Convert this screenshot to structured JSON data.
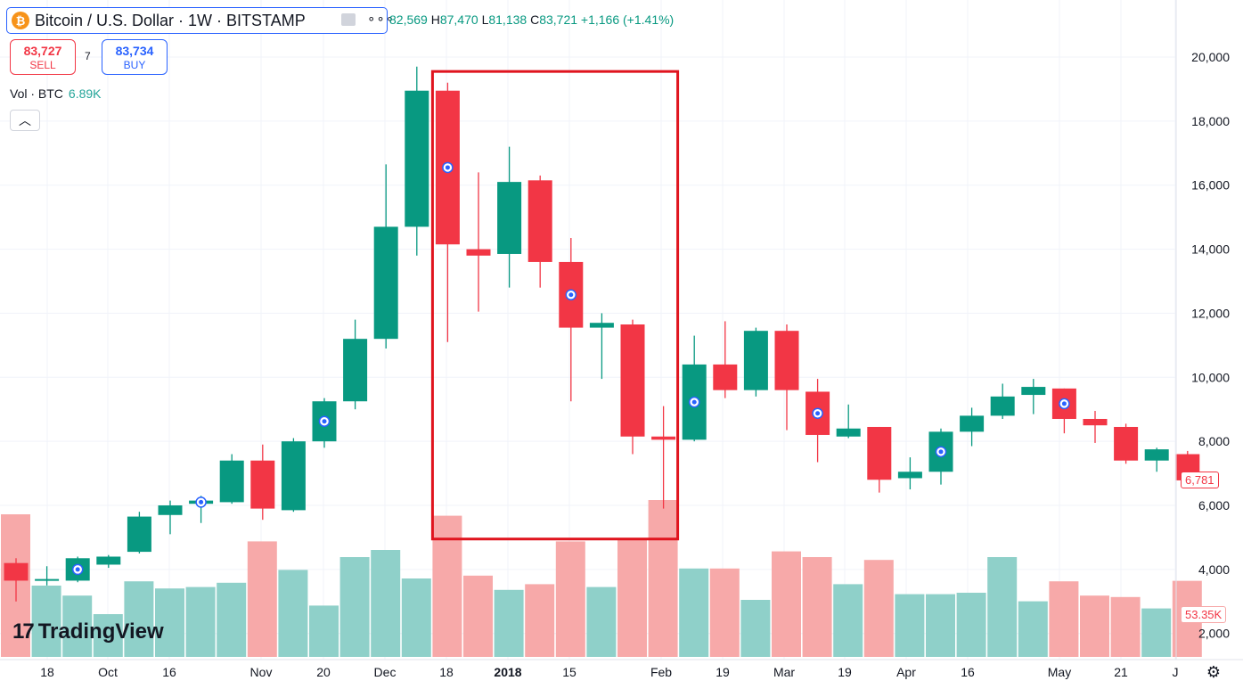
{
  "header": {
    "symbol_title": "Bitcoin / U.S. Dollar · 1W · BITSTAMP",
    "coin_icon": "bitcoin-icon",
    "ohlc": {
      "open_label": "O",
      "open": "82,569",
      "high_label": "H",
      "high": "87,470",
      "low_label": "L",
      "low": "81,138",
      "close_label": "C",
      "close": "83,721",
      "change": "+1,166 (+1.41%)"
    }
  },
  "trade": {
    "sell_price": "83,727",
    "sell_label": "SELL",
    "buy_price": "83,734",
    "buy_label": "BUY",
    "spread": "7"
  },
  "volume_legend": {
    "label": "Vol · BTC",
    "value": "6.89K"
  },
  "logo": {
    "mark": "17",
    "text": "TradingView"
  },
  "price_tags": {
    "last_price": "6,781",
    "last_volume": "53.35K"
  },
  "colors": {
    "up": "#089981",
    "down": "#f23645",
    "vol_up": "#8fd0c9",
    "vol_down": "#f7a9a9",
    "highlight_box": "#e0141e",
    "accent": "#2962ff"
  },
  "chart_data": {
    "type": "candlestick",
    "title": "Bitcoin / U.S. Dollar · 1W · BITSTAMP",
    "y_axis": {
      "ticks": [
        "20,000",
        "18,000",
        "16,000",
        "14,000",
        "12,000",
        "10,000",
        "8,000",
        "6,000",
        "4,000",
        "2,000"
      ],
      "ylim": [
        1200,
        21000
      ]
    },
    "x_axis": {
      "ticks": [
        "18",
        "Oct",
        "16",
        "Nov",
        "20",
        "Dec",
        "18",
        "2018",
        "15",
        "Feb",
        "19",
        "Mar",
        "19",
        "Apr",
        "16",
        "May",
        "21",
        "J"
      ]
    },
    "candles": [
      {
        "o": 4200,
        "h": 4350,
        "l": 3000,
        "c": 3650,
        "vol_k": 100
      },
      {
        "o": 3650,
        "h": 4100,
        "l": 3500,
        "c": 3700,
        "vol_k": 50
      },
      {
        "o": 3650,
        "h": 4400,
        "l": 3600,
        "c": 4350,
        "vol_k": 43
      },
      {
        "o": 4150,
        "h": 4450,
        "l": 4050,
        "c": 4400,
        "vol_k": 30
      },
      {
        "o": 4550,
        "h": 5800,
        "l": 4500,
        "c": 5650,
        "vol_k": 53
      },
      {
        "o": 5700,
        "h": 6150,
        "l": 5100,
        "c": 6000,
        "vol_k": 48
      },
      {
        "o": 6050,
        "h": 6300,
        "l": 5450,
        "c": 6150,
        "vol_k": 49
      },
      {
        "o": 6100,
        "h": 7600,
        "l": 6050,
        "c": 7400,
        "vol_k": 52
      },
      {
        "o": 7400,
        "h": 7900,
        "l": 5550,
        "c": 5900,
        "vol_k": 81
      },
      {
        "o": 5850,
        "h": 8100,
        "l": 5800,
        "c": 8000,
        "vol_k": 61
      },
      {
        "o": 8000,
        "h": 9350,
        "l": 7800,
        "c": 9250,
        "vol_k": 36
      },
      {
        "o": 9250,
        "h": 11800,
        "l": 9000,
        "c": 11200,
        "vol_k": 70
      },
      {
        "o": 11200,
        "h": 16650,
        "l": 10900,
        "c": 14700,
        "vol_k": 75
      },
      {
        "o": 14700,
        "h": 19700,
        "l": 13800,
        "c": 18950,
        "vol_k": 55
      },
      {
        "o": 18950,
        "h": 19200,
        "l": 11100,
        "c": 14150,
        "vol_k": 99
      },
      {
        "o": 14000,
        "h": 16400,
        "l": 12050,
        "c": 13800,
        "vol_k": 57
      },
      {
        "o": 13850,
        "h": 17200,
        "l": 12800,
        "c": 16100,
        "vol_k": 47
      },
      {
        "o": 16150,
        "h": 16300,
        "l": 12800,
        "c": 13600,
        "vol_k": 51
      },
      {
        "o": 13600,
        "h": 14350,
        "l": 9250,
        "c": 11550,
        "vol_k": 81
      },
      {
        "o": 11550,
        "h": 12000,
        "l": 9950,
        "c": 11700,
        "vol_k": 49
      },
      {
        "o": 11650,
        "h": 11800,
        "l": 7600,
        "c": 8150,
        "vol_k": 82
      },
      {
        "o": 8150,
        "h": 9100,
        "l": 5900,
        "c": 8050,
        "vol_k": 110
      },
      {
        "o": 8050,
        "h": 11300,
        "l": 8000,
        "c": 10400,
        "vol_k": 62
      },
      {
        "o": 10400,
        "h": 11750,
        "l": 9350,
        "c": 9600,
        "vol_k": 62
      },
      {
        "o": 9600,
        "h": 11550,
        "l": 9400,
        "c": 11450,
        "vol_k": 40
      },
      {
        "o": 11450,
        "h": 11650,
        "l": 8350,
        "c": 9600,
        "vol_k": 74
      },
      {
        "o": 9550,
        "h": 9950,
        "l": 7350,
        "c": 8200,
        "vol_k": 70
      },
      {
        "o": 8150,
        "h": 9150,
        "l": 8100,
        "c": 8400,
        "vol_k": 51
      },
      {
        "o": 8450,
        "h": 8450,
        "l": 6400,
        "c": 6800,
        "vol_k": 68
      },
      {
        "o": 6850,
        "h": 7500,
        "l": 6500,
        "c": 7050,
        "vol_k": 44
      },
      {
        "o": 7050,
        "h": 8400,
        "l": 6650,
        "c": 8300,
        "vol_k": 44
      },
      {
        "o": 8300,
        "h": 9050,
        "l": 7850,
        "c": 8800,
        "vol_k": 45
      },
      {
        "o": 8800,
        "h": 9800,
        "l": 8700,
        "c": 9400,
        "vol_k": 70
      },
      {
        "o": 9450,
        "h": 9950,
        "l": 8850,
        "c": 9700,
        "vol_k": 39
      },
      {
        "o": 9650,
        "h": 9650,
        "l": 8250,
        "c": 8700,
        "vol_k": 53
      },
      {
        "o": 8700,
        "h": 8950,
        "l": 7950,
        "c": 8500,
        "vol_k": 43
      },
      {
        "o": 8450,
        "h": 8550,
        "l": 7300,
        "c": 7400,
        "vol_k": 42
      },
      {
        "o": 7400,
        "h": 7800,
        "l": 7050,
        "c": 7750,
        "vol_k": 34
      },
      {
        "o": 7600,
        "h": 7700,
        "l": 6750,
        "c": 6781,
        "vol_k": 53.35
      }
    ],
    "event_markers_on_candles": [
      2,
      6,
      10,
      14,
      18,
      22,
      26,
      30,
      34
    ],
    "highlight_range": {
      "from_candle": 14,
      "to_candle": 21,
      "price_top": 19550,
      "price_bottom": 4950
    }
  }
}
